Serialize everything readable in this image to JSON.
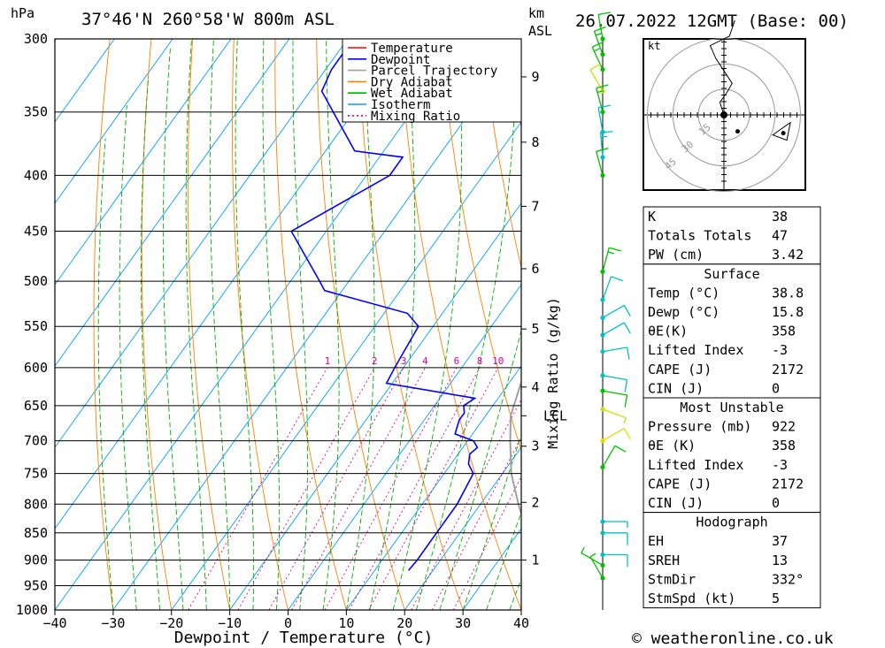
{
  "header": {
    "location": "37°46'N  260°58'W  800m  ASL",
    "datetime": "26.07.2022  12GMT  (Base: 00)",
    "pressure_unit": "hPa",
    "height_unit_km": "km",
    "height_unit_asl": "ASL",
    "copyright": "© weatheronline.co.uk"
  },
  "chart_data": {
    "type": "line",
    "title": "",
    "xlabel": "Dewpoint / Temperature (°C)",
    "ylabel": "hPa",
    "xlim": [
      -40,
      40
    ],
    "ylim": [
      1000,
      300
    ],
    "y_scale": "log (skew-T)",
    "x_ticks": [
      "-40",
      "-30",
      "-20",
      "-10",
      "0",
      "10",
      "20",
      "30",
      "40"
    ],
    "pressure_ticks": [
      "300",
      "350",
      "400",
      "450",
      "500",
      "550",
      "600",
      "650",
      "700",
      "750",
      "800",
      "850",
      "900",
      "950",
      "1000"
    ],
    "height_ticks": [
      {
        "p": 900,
        "label": "1"
      },
      {
        "p": 797,
        "label": "2"
      },
      {
        "p": 708,
        "label": "3"
      },
      {
        "p": 625,
        "label": "4"
      },
      {
        "p": 553,
        "label": "5"
      },
      {
        "p": 487,
        "label": "6"
      },
      {
        "p": 427,
        "label": "7"
      },
      {
        "p": 373,
        "label": "8"
      },
      {
        "p": 325,
        "label": "9"
      }
    ],
    "lcl": {
      "p": 664,
      "label": "LCL"
    },
    "mixing_ratio_axis_label": "Mixing Ratio (g/kg)",
    "mixing_ratios": [
      "1",
      "2",
      "3",
      "4",
      "6",
      "8",
      "10",
      "16",
      "20",
      "25"
    ],
    "legend": [
      "Temperature",
      "Dewpoint",
      "Parcel Trajectory",
      "Dry Adiabat",
      "Wet Adiabat",
      "Isotherm",
      "Mixing Ratio"
    ],
    "legend_position": "top-right",
    "colors": {
      "temperature": "#ff0000",
      "dewpoint": "#0000ff",
      "parcel": "#a0a0a0",
      "dry_adiabat": "#ff8000",
      "wet_adiabat": "#00b000",
      "isotherm": "#00a0ff",
      "mixing_ratio": "#e00090"
    },
    "series": [
      {
        "name": "Temperature",
        "points": [
          [
            925,
            39
          ],
          [
            920,
            37.5
          ],
          [
            900,
            35.5
          ],
          [
            850,
            31.6
          ],
          [
            800,
            27.6
          ],
          [
            750,
            23.6
          ],
          [
            700,
            20
          ],
          [
            680,
            19
          ],
          [
            650,
            16.5
          ],
          [
            600,
            12.5
          ],
          [
            550,
            5.5
          ],
          [
            520,
            2
          ],
          [
            510,
            3.5
          ],
          [
            500,
            3
          ],
          [
            480,
            0
          ],
          [
            450,
            -4.5
          ],
          [
            400,
            -12.3
          ],
          [
            380,
            -15.8
          ],
          [
            350,
            -21.5
          ],
          [
            340,
            -22.8
          ],
          [
            320,
            -25
          ],
          [
            300,
            -29
          ]
        ]
      },
      {
        "name": "Dewpoint",
        "points": [
          [
            920,
            15.8
          ],
          [
            900,
            16
          ],
          [
            850,
            16
          ],
          [
            800,
            16
          ],
          [
            750,
            15
          ],
          [
            735,
            13
          ],
          [
            720,
            12
          ],
          [
            710,
            12.5
          ],
          [
            700,
            11
          ],
          [
            690,
            7
          ],
          [
            670,
            6
          ],
          [
            660,
            6
          ],
          [
            650,
            5
          ],
          [
            640,
            6
          ],
          [
            620,
            -11
          ],
          [
            600,
            -11.5
          ],
          [
            550,
            -12.5
          ],
          [
            535,
            -16
          ],
          [
            510,
            -33
          ],
          [
            500,
            -35
          ],
          [
            450,
            -46
          ],
          [
            400,
            -36
          ],
          [
            385,
            -36
          ],
          [
            380,
            -45
          ],
          [
            335,
            -58
          ],
          [
            320,
            -59
          ],
          [
            300,
            -59
          ]
        ]
      },
      {
        "name": "Parcel Trajectory",
        "points": [
          [
            920,
            38.8
          ],
          [
            900,
            36.5
          ],
          [
            850,
            31.5
          ],
          [
            800,
            26.5
          ],
          [
            750,
            21.5
          ],
          [
            700,
            17.3
          ],
          [
            664,
            14.3
          ],
          [
            600,
            11
          ],
          [
            550,
            7
          ],
          [
            500,
            2.5
          ],
          [
            450,
            -2.5
          ],
          [
            400,
            -8.5
          ],
          [
            365,
            -13.5
          ]
        ]
      }
    ],
    "wind_barbs": [
      {
        "p": 300,
        "dir": 350,
        "kt": 10,
        "c": "#00c000"
      },
      {
        "p": 310,
        "dir": 340,
        "kt": 15,
        "c": "#00c000"
      },
      {
        "p": 320,
        "dir": 335,
        "kt": 15,
        "c": "#00c000"
      },
      {
        "p": 335,
        "dir": 330,
        "kt": 10,
        "c": "#c8e000"
      },
      {
        "p": 350,
        "dir": 345,
        "kt": 15,
        "c": "#00c000"
      },
      {
        "p": 365,
        "dir": 350,
        "kt": 10,
        "c": "#00c0c0"
      },
      {
        "p": 385,
        "dir": 355,
        "kt": 15,
        "c": "#00c0c0"
      },
      {
        "p": 400,
        "dir": 345,
        "kt": 10,
        "c": "#00c000"
      },
      {
        "p": 490,
        "dir": 15,
        "kt": 15,
        "c": "#00c000"
      },
      {
        "p": 520,
        "dir": 20,
        "kt": 10,
        "c": "#00c0c0"
      },
      {
        "p": 540,
        "dir": 60,
        "kt": 10,
        "c": "#00c0c0"
      },
      {
        "p": 560,
        "dir": 60,
        "kt": 10,
        "c": "#00c0c0"
      },
      {
        "p": 580,
        "dir": 80,
        "kt": 10,
        "c": "#00c0c0"
      },
      {
        "p": 610,
        "dir": 100,
        "kt": 10,
        "c": "#00c0c0"
      },
      {
        "p": 630,
        "dir": 100,
        "kt": 10,
        "c": "#00c000"
      },
      {
        "p": 655,
        "dir": 110,
        "kt": 5,
        "c": "#c8e000"
      },
      {
        "p": 700,
        "dir": 60,
        "kt": 10,
        "c": "#e8d800"
      },
      {
        "p": 740,
        "dir": 30,
        "kt": 10,
        "c": "#00c000"
      },
      {
        "p": 830,
        "dir": 90,
        "kt": 5,
        "c": "#00c0c0"
      },
      {
        "p": 850,
        "dir": 90,
        "kt": 10,
        "c": "#00c0c0"
      },
      {
        "p": 890,
        "dir": 90,
        "kt": 10,
        "c": "#00c0c0"
      },
      {
        "p": 910,
        "dir": 300,
        "kt": 5,
        "c": "#00c000"
      },
      {
        "p": 935,
        "dir": 330,
        "kt": 5,
        "c": "#00c000"
      }
    ],
    "hodograph": {
      "unit_label": "kt",
      "rings": [
        "15",
        "30",
        "45"
      ],
      "points": [
        [
          0,
          0
        ],
        [
          -1.5,
          4
        ],
        [
          1,
          7
        ],
        [
          3,
          10
        ],
        [
          -3,
          18
        ],
        [
          -5,
          22
        ],
        [
          2,
          25
        ],
        [
          4,
          30
        ]
      ],
      "storm_motion": [
        7,
        -2
      ],
      "storm_marker": [
        5,
        -6
      ]
    }
  },
  "indices": {
    "general": [
      {
        "label": "K",
        "value": "38"
      },
      {
        "label": "Totals Totals",
        "value": "47"
      },
      {
        "label": "PW (cm)",
        "value": "3.42"
      }
    ],
    "surface": {
      "title": "Surface",
      "rows": [
        {
          "label": "Temp (°C)",
          "value": "38.8"
        },
        {
          "label": "Dewp (°C)",
          "value": "15.8"
        },
        {
          "label": "θE(K)",
          "value": "358"
        },
        {
          "label": "Lifted Index",
          "value": "-3"
        },
        {
          "label": "CAPE (J)",
          "value": "2172"
        },
        {
          "label": "CIN (J)",
          "value": "0"
        }
      ]
    },
    "most_unstable": {
      "title": "Most Unstable",
      "rows": [
        {
          "label": "Pressure (mb)",
          "value": "922"
        },
        {
          "label": "θE (K)",
          "value": "358"
        },
        {
          "label": "Lifted Index",
          "value": "-3"
        },
        {
          "label": "CAPE (J)",
          "value": "2172"
        },
        {
          "label": "CIN (J)",
          "value": "0"
        }
      ]
    },
    "hodograph": {
      "title": "Hodograph",
      "rows": [
        {
          "label": "EH",
          "value": "37"
        },
        {
          "label": "SREH",
          "value": "13"
        },
        {
          "label": "StmDir",
          "value": "332°"
        },
        {
          "label": "StmSpd (kt)",
          "value": "5"
        }
      ]
    }
  }
}
